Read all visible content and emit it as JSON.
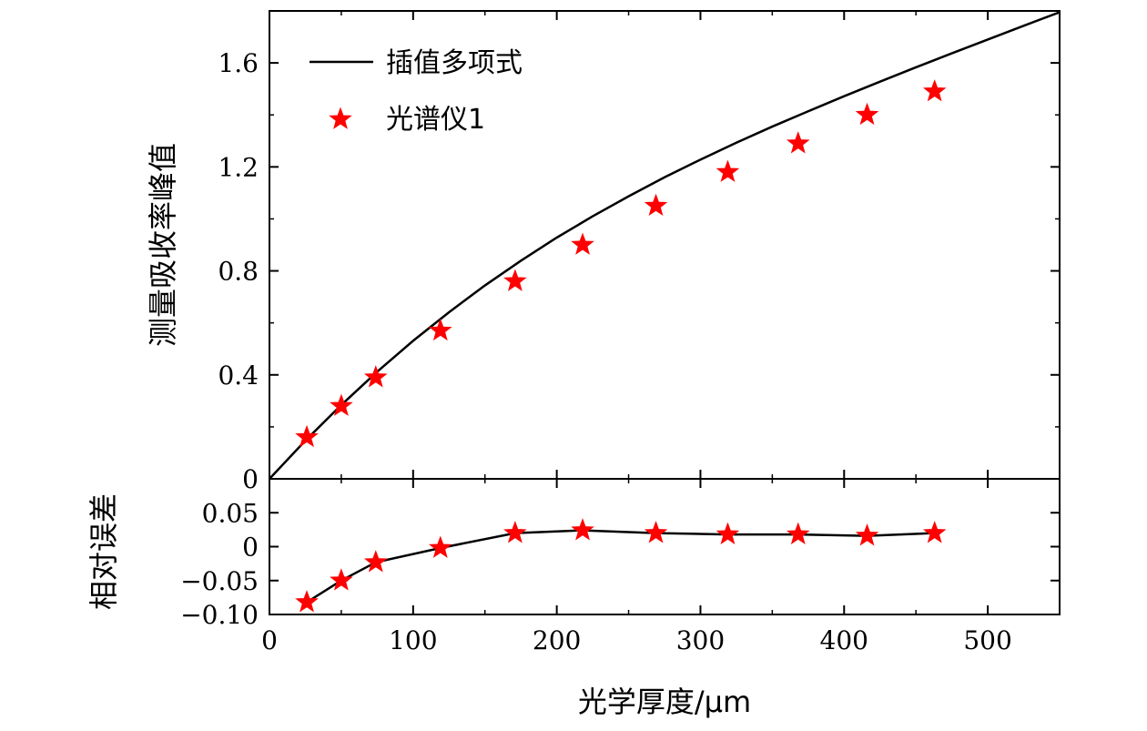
{
  "chart_data": [
    {
      "type": "line",
      "panel": "top",
      "ylabel": "测量吸收率峰值",
      "xlim": [
        0,
        550
      ],
      "ylim": [
        0,
        1.8
      ],
      "y_ticks": [
        0,
        0.4,
        0.8,
        1.2,
        1.6
      ],
      "y_tick_labels": [
        "0",
        "0.4",
        "0.8",
        "1.2",
        "1.6"
      ],
      "legend": {
        "placement": "top-left",
        "entries": [
          {
            "label": "插值多项式",
            "marker": "line"
          },
          {
            "label": "光谱仪1",
            "marker": "star"
          }
        ]
      },
      "series": [
        {
          "name": "插值多项式",
          "style": "line",
          "color": "#000000",
          "x": [
            0,
            25,
            50,
            75,
            100,
            125,
            150,
            175,
            200,
            225,
            250,
            275,
            300,
            325,
            350,
            375,
            400,
            425,
            450,
            475,
            500,
            525,
            550
          ],
          "y": [
            0.0,
            0.147,
            0.284,
            0.412,
            0.531,
            0.641,
            0.744,
            0.839,
            0.928,
            1.01,
            1.087,
            1.16,
            1.228,
            1.293,
            1.355,
            1.414,
            1.472,
            1.528,
            1.583,
            1.637,
            1.69,
            1.743,
            1.795
          ]
        },
        {
          "name": "光谱仪1",
          "style": "star",
          "color": "#ff0000",
          "x": [
            26,
            50,
            74,
            119,
            171,
            218,
            269,
            319,
            368,
            416,
            463
          ],
          "y": [
            0.16,
            0.28,
            0.39,
            0.57,
            0.76,
            0.9,
            1.05,
            1.18,
            1.29,
            1.4,
            1.49
          ]
        }
      ]
    },
    {
      "type": "line",
      "panel": "bottom",
      "ylabel": "相对误差",
      "xlabel": "光学厚度/μm",
      "xlim": [
        0,
        550
      ],
      "ylim": [
        -0.1,
        0.1
      ],
      "x_ticks": [
        0,
        100,
        200,
        300,
        400,
        500
      ],
      "x_tick_labels": [
        "0",
        "100",
        "200",
        "300",
        "400",
        "500"
      ],
      "y_ticks": [
        -0.1,
        -0.05,
        0,
        0.05
      ],
      "y_tick_labels": [
        "−0.10",
        "−0.05",
        "0",
        "0.05"
      ],
      "series": [
        {
          "name": "光谱仪1",
          "style": "line+star",
          "line_color": "#000000",
          "marker_color": "#ff0000",
          "x": [
            26,
            50,
            74,
            119,
            171,
            218,
            269,
            319,
            368,
            416,
            463
          ],
          "y": [
            -0.082,
            -0.05,
            -0.023,
            -0.002,
            0.02,
            0.024,
            0.02,
            0.018,
            0.018,
            0.016,
            0.02
          ]
        }
      ]
    }
  ]
}
